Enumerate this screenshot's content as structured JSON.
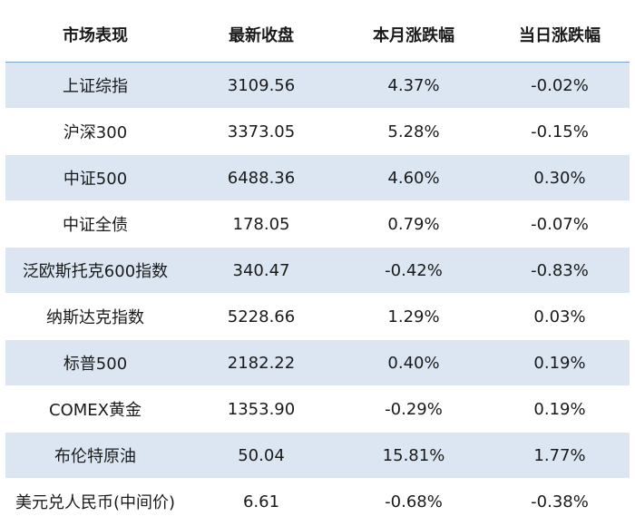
{
  "headers": [
    "市场表现",
    "最新收盘",
    "本月涨跌幅",
    "当日涨跌幅"
  ],
  "rows": [
    [
      "上证综指",
      "3109.56",
      "4.37%",
      "-0.02%"
    ],
    [
      "沪深300",
      "3373.05",
      "5.28%",
      "-0.15%"
    ],
    [
      "中证500",
      "6488.36",
      "4.60%",
      "0.30%"
    ],
    [
      "中证全债",
      "178.05",
      "0.79%",
      "-0.07%"
    ],
    [
      "泛欧斯托克600指数",
      "340.47",
      "-0.42%",
      "-0.83%"
    ],
    [
      "纳斯达克指数",
      "5228.66",
      "1.29%",
      "0.03%"
    ],
    [
      "标普500",
      "2182.22",
      "0.40%",
      "0.19%"
    ],
    [
      "COMEX黄金",
      "1353.90",
      "-0.29%",
      "0.19%"
    ],
    [
      "布伦特原油",
      "50.04",
      "15.81%",
      "1.77%"
    ],
    [
      "美元兑人民币(中间价)",
      "6.61",
      "-0.68%",
      "-0.38%"
    ]
  ],
  "colors": {
    "band": "#dce6f2",
    "header_rule": "#7da2c8"
  }
}
